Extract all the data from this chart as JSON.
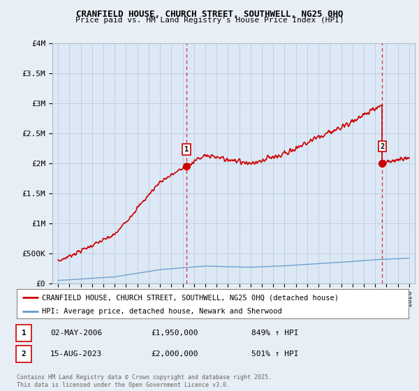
{
  "title_line1": "CRANFIELD HOUSE, CHURCH STREET, SOUTHWELL, NG25 0HQ",
  "title_line2": "Price paid vs. HM Land Registry's House Price Index (HPI)",
  "ylim": [
    0,
    4000000
  ],
  "xlim_start": 1994.5,
  "xlim_end": 2026.5,
  "yticks": [
    0,
    500000,
    1000000,
    1500000,
    2000000,
    2500000,
    3000000,
    3500000,
    4000000
  ],
  "ytick_labels": [
    "£0",
    "£500K",
    "£1M",
    "£1.5M",
    "£2M",
    "£2.5M",
    "£3M",
    "£3.5M",
    "£4M"
  ],
  "xticks": [
    1995,
    1996,
    1997,
    1998,
    1999,
    2000,
    2001,
    2002,
    2003,
    2004,
    2005,
    2006,
    2007,
    2008,
    2009,
    2010,
    2011,
    2012,
    2013,
    2014,
    2015,
    2016,
    2017,
    2018,
    2019,
    2020,
    2021,
    2022,
    2023,
    2024,
    2025,
    2026
  ],
  "background_color": "#e8eef5",
  "plot_bg_color": "#dce8f5",
  "grid_color": "#c0cedd",
  "red_line_color": "#cc0000",
  "blue_line_color": "#6699cc",
  "vline_color": "#cc0000",
  "sale1_x": 2006.33,
  "sale1_y": 1950000,
  "sale1_label": "1",
  "sale2_x": 2023.62,
  "sale2_y": 2000000,
  "sale2_label": "2",
  "annotation1_date": "02-MAY-2006",
  "annotation1_price": "£1,950,000",
  "annotation1_hpi": "849% ↑ HPI",
  "annotation2_date": "15-AUG-2023",
  "annotation2_price": "£2,000,000",
  "annotation2_hpi": "501% ↑ HPI",
  "legend_label1": "CRANFIELD HOUSE, CHURCH STREET, SOUTHWELL, NG25 0HQ (detached house)",
  "legend_label2": "HPI: Average price, detached house, Newark and Sherwood",
  "footer_text": "Contains HM Land Registry data © Crown copyright and database right 2025.\nThis data is licensed under the Open Government Licence v3.0."
}
